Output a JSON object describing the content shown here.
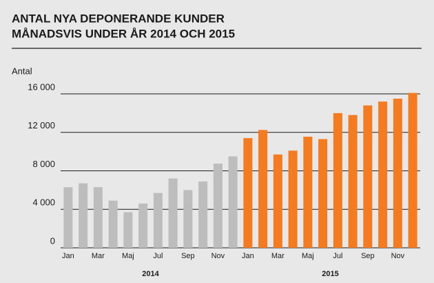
{
  "chart_data": {
    "type": "bar",
    "title": [
      "ANTAL NYA DEPONERANDE KUNDER",
      "MÅNADSVIS UNDER ÅR 2014 OCH 2015"
    ],
    "y_label": "Antal",
    "categories": [
      "Jan",
      null,
      "Mar",
      null,
      "Maj",
      null,
      "Jul",
      null,
      "Sep",
      null,
      "Nov",
      null
    ],
    "series": [
      {
        "name": "2014",
        "color": "#bdbdbd",
        "values": [
          6300,
          6700,
          6300,
          4900,
          3700,
          4600,
          5700,
          7200,
          6000,
          6900,
          8750,
          9500
        ]
      },
      {
        "name": "2015",
        "color": "#f47b20",
        "values": [
          11400,
          12250,
          9700,
          10100,
          11550,
          11300,
          14000,
          13800,
          14800,
          15200,
          15500,
          16100
        ]
      }
    ],
    "ylim": [
      0,
      16000
    ],
    "yticks": [
      0,
      {
        "value": 4000,
        "label": "4 000"
      },
      {
        "value": 8000,
        "label": "8 000"
      },
      {
        "value": 12000,
        "label": "12 000"
      },
      {
        "value": 16000,
        "label": "16 000"
      }
    ],
    "grid": true
  }
}
